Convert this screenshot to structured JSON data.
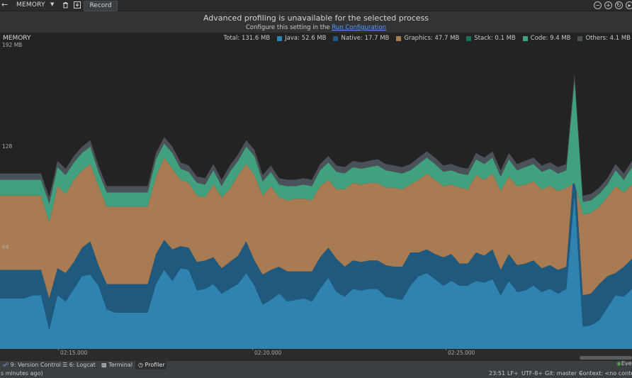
{
  "toolbar": {
    "selector_label": "MEMORY",
    "record_label": "Record"
  },
  "banner": {
    "title": "Advanced profiling is unavailable for the selected process",
    "subtitle_prefix": "Configure this setting in the",
    "subtitle_link": "Run Configuration"
  },
  "chart_data": {
    "type": "area",
    "title": "MEMORY",
    "ylabel": "",
    "xlabel": "",
    "y_unit": "MB",
    "ylim": [
      0,
      192
    ],
    "y_ticks": [
      "192 MB",
      "128",
      "64"
    ],
    "x_ticks": [
      "02:15.000",
      "02:20.000",
      "02:25.000"
    ],
    "legend_placement": "top-right",
    "legend_total": "Total: 131.6 MB",
    "colors": {
      "Java": "#2f83b1",
      "Native": "#1f5a7e",
      "Graphics": "#a97b52",
      "Stack": "#1c6f58",
      "Code": "#41a17e",
      "Others": "#4b5158"
    },
    "legend": [
      {
        "name": "Java",
        "text": "Java: 52.6 MB"
      },
      {
        "name": "Native",
        "text": "Native: 17.7 MB"
      },
      {
        "name": "Graphics",
        "text": "Graphics: 47.7 MB"
      },
      {
        "name": "Stack",
        "text": "Stack: 0.1 MB"
      },
      {
        "name": "Code",
        "text": "Code: 9.4 MB"
      },
      {
        "name": "Others",
        "text": "Others: 4.1 MB"
      }
    ],
    "series_totals": [
      {
        "name": "Java",
        "values": [
          32,
          32,
          32,
          32,
          34,
          34,
          12,
          34,
          30,
          38,
          46,
          47,
          40,
          25,
          23,
          23,
          23,
          23,
          23,
          41,
          50,
          43,
          51,
          50,
          37,
          38,
          41,
          35,
          38,
          41,
          48,
          40,
          28,
          31,
          35,
          30,
          31,
          32,
          30,
          38,
          45,
          36,
          33,
          38,
          37,
          38,
          38,
          33,
          32,
          31,
          40,
          46,
          48,
          44,
          40,
          43,
          40,
          40,
          43,
          42,
          44,
          34,
          43,
          36,
          37,
          40,
          36,
          38,
          35,
          38,
          98,
          14,
          15,
          18,
          26,
          34,
          33,
          38
        ]
      },
      {
        "name": "Native",
        "values": [
          50,
          50,
          50,
          50,
          50,
          50,
          32,
          51,
          48,
          55,
          64,
          68,
          53,
          41,
          41,
          41,
          41,
          41,
          41,
          60,
          69,
          63,
          65,
          64,
          55,
          56,
          58,
          51,
          55,
          59,
          68,
          56,
          47,
          50,
          52,
          49,
          49,
          49,
          49,
          58,
          64,
          57,
          52,
          56,
          55,
          56,
          56,
          53,
          52,
          52,
          61,
          61,
          63,
          60,
          58,
          60,
          54,
          54,
          61,
          59,
          63,
          50,
          60,
          53,
          54,
          56,
          51,
          53,
          50,
          52,
          120,
          34,
          35,
          41,
          46,
          48,
          52,
          57
        ]
      },
      {
        "name": "Graphics",
        "values": [
          97,
          97,
          97,
          97,
          97,
          97,
          80,
          103,
          98,
          107,
          113,
          117,
          103,
          90,
          90,
          90,
          90,
          90,
          90,
          109,
          121,
          114,
          107,
          105,
          97,
          96,
          104,
          96,
          101,
          110,
          117,
          110,
          97,
          103,
          96,
          94,
          95,
          95,
          94,
          103,
          107,
          101,
          101,
          105,
          104,
          105,
          105,
          102,
          102,
          101,
          104,
          107,
          111,
          107,
          103,
          104,
          102,
          101,
          110,
          107,
          111,
          100,
          109,
          103,
          104,
          106,
          101,
          103,
          100,
          102,
          105,
          85,
          86,
          90,
          96,
          103,
          99,
          104
        ]
      },
      {
        "name": "Stack",
        "values": [
          97,
          97,
          97,
          97,
          97,
          97,
          80,
          103,
          98,
          107,
          113,
          117,
          103,
          90,
          90,
          90,
          90,
          90,
          90,
          109,
          121,
          114,
          107,
          105,
          97,
          96,
          104,
          96,
          101,
          110,
          117,
          110,
          97,
          103,
          96,
          94,
          95,
          95,
          94,
          103,
          107,
          101,
          101,
          105,
          104,
          105,
          105,
          102,
          102,
          101,
          104,
          107,
          111,
          107,
          103,
          104,
          102,
          101,
          110,
          107,
          111,
          100,
          109,
          103,
          104,
          106,
          101,
          103,
          100,
          102,
          105,
          85,
          86,
          90,
          96,
          103,
          99,
          104
        ]
      },
      {
        "name": "Code",
        "values": [
          107,
          107,
          107,
          107,
          107,
          107,
          92,
          115,
          110,
          118,
          124,
          128,
          112,
          99,
          99,
          99,
          99,
          99,
          99,
          120,
          130,
          124,
          114,
          112,
          105,
          104,
          113,
          103,
          112,
          119,
          128,
          122,
          106,
          112,
          104,
          103,
          103,
          104,
          103,
          113,
          118,
          112,
          111,
          115,
          114,
          115,
          116,
          113,
          112,
          111,
          113,
          117,
          121,
          117,
          112,
          113,
          111,
          110,
          120,
          117,
          121,
          109,
          120,
          113,
          115,
          117,
          112,
          114,
          111,
          113,
          170,
          93,
          94,
          98,
          104,
          113,
          107,
          115
        ]
      },
      {
        "name": "Others",
        "values": [
          111,
          111,
          111,
          111,
          111,
          111,
          96,
          119,
          114,
          122,
          128,
          132,
          116,
          103,
          103,
          103,
          103,
          103,
          103,
          124,
          134,
          128,
          118,
          116,
          109,
          108,
          117,
          107,
          116,
          123,
          132,
          126,
          110,
          116,
          108,
          107,
          107,
          108,
          107,
          117,
          122,
          116,
          115,
          119,
          118,
          119,
          120,
          117,
          116,
          115,
          117,
          121,
          125,
          121,
          116,
          117,
          115,
          114,
          124,
          121,
          125,
          113,
          124,
          117,
          119,
          121,
          116,
          118,
          115,
          117,
          174,
          97,
          98,
          102,
          108,
          117,
          111,
          119
        ]
      }
    ]
  },
  "tool_windows": {
    "version_control": "9: Version Control",
    "logcat": "6: Logcat",
    "terminal": "Terminal",
    "profiler": "Profiler",
    "event_log": "Eve"
  },
  "statusbar": {
    "left_text": "s minutes ago)",
    "position": "23:51",
    "line_sep": "LF÷",
    "encoding": "UTF-8÷",
    "git": "Git: master ÷",
    "context": "Context: <no context>"
  }
}
